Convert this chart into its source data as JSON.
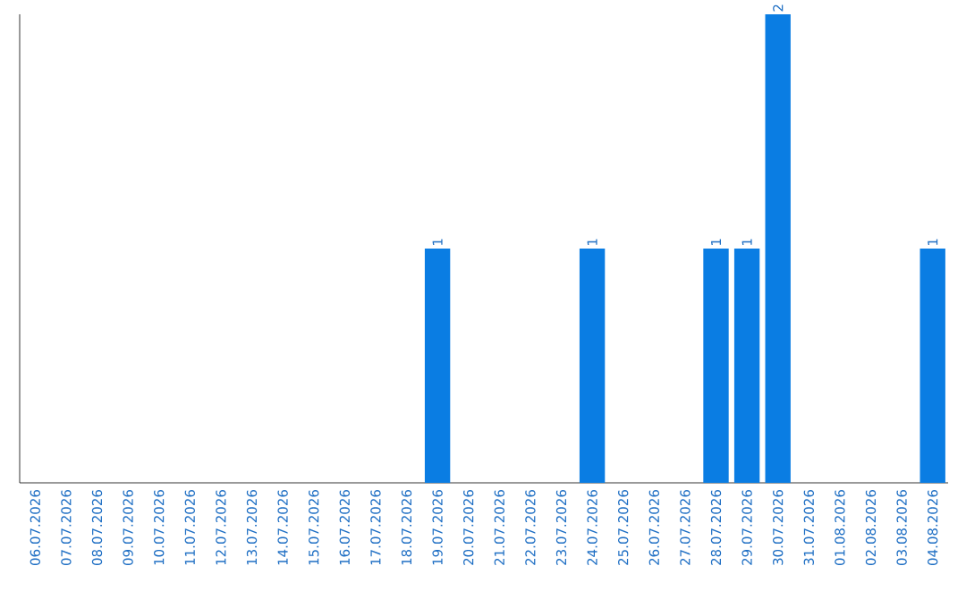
{
  "chart_data": {
    "type": "bar",
    "categories": [
      "06.07.2026",
      "07.07.2026",
      "08.07.2026",
      "09.07.2026",
      "10.07.2026",
      "11.07.2026",
      "12.07.2026",
      "13.07.2026",
      "14.07.2026",
      "15.07.2026",
      "16.07.2026",
      "17.07.2026",
      "18.07.2026",
      "19.07.2026",
      "20.07.2026",
      "21.07.2026",
      "22.07.2026",
      "23.07.2026",
      "24.07.2026",
      "25.07.2026",
      "26.07.2026",
      "27.07.2026",
      "28.07.2026",
      "29.07.2026",
      "30.07.2026",
      "31.07.2026",
      "01.08.2026",
      "02.08.2026",
      "03.08.2026",
      "04.08.2026"
    ],
    "values": [
      null,
      null,
      null,
      null,
      null,
      null,
      null,
      null,
      null,
      null,
      null,
      null,
      null,
      1,
      null,
      null,
      null,
      null,
      1,
      null,
      null,
      null,
      1,
      1,
      2,
      null,
      null,
      null,
      null,
      1
    ],
    "tick_labels": "x",
    "value_labels": [
      null,
      null,
      null,
      null,
      null,
      null,
      null,
      null,
      null,
      null,
      null,
      null,
      null,
      "1",
      null,
      null,
      null,
      null,
      "1",
      null,
      null,
      null,
      "1",
      "1",
      "2",
      null,
      null,
      null,
      null,
      "1"
    ],
    "color": "#0a7de3",
    "ylim": [
      0,
      2
    ]
  }
}
